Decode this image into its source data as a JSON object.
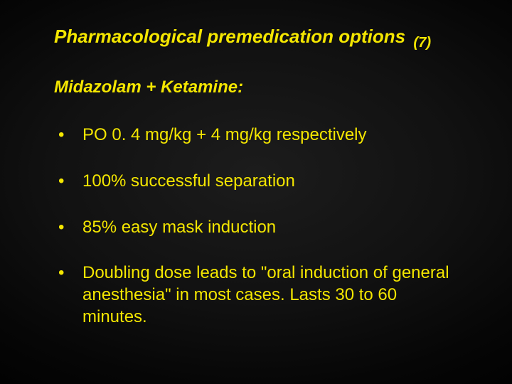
{
  "slide": {
    "background_color": "#000000",
    "text_color": "#f4e600",
    "font_family": "Arial",
    "title": {
      "text": "Pharmacological premedication options",
      "ref": "(7)",
      "fontsize": 26,
      "italic": true,
      "bold": true
    },
    "subhead": {
      "text": "Midazolam + Ketamine:",
      "fontsize": 24,
      "italic": true,
      "bold": true
    },
    "bullets": {
      "fontsize": 24,
      "marker": "•",
      "items": [
        "PO 0. 4 mg/kg + 4 mg/kg respectively",
        "100% successful separation",
        "85% easy mask induction",
        "Doubling dose leads to \"oral induction of general  anesthesia\" in most cases. Lasts 30 to 60          minutes."
      ]
    },
    "watermark": "· · · · ·"
  }
}
